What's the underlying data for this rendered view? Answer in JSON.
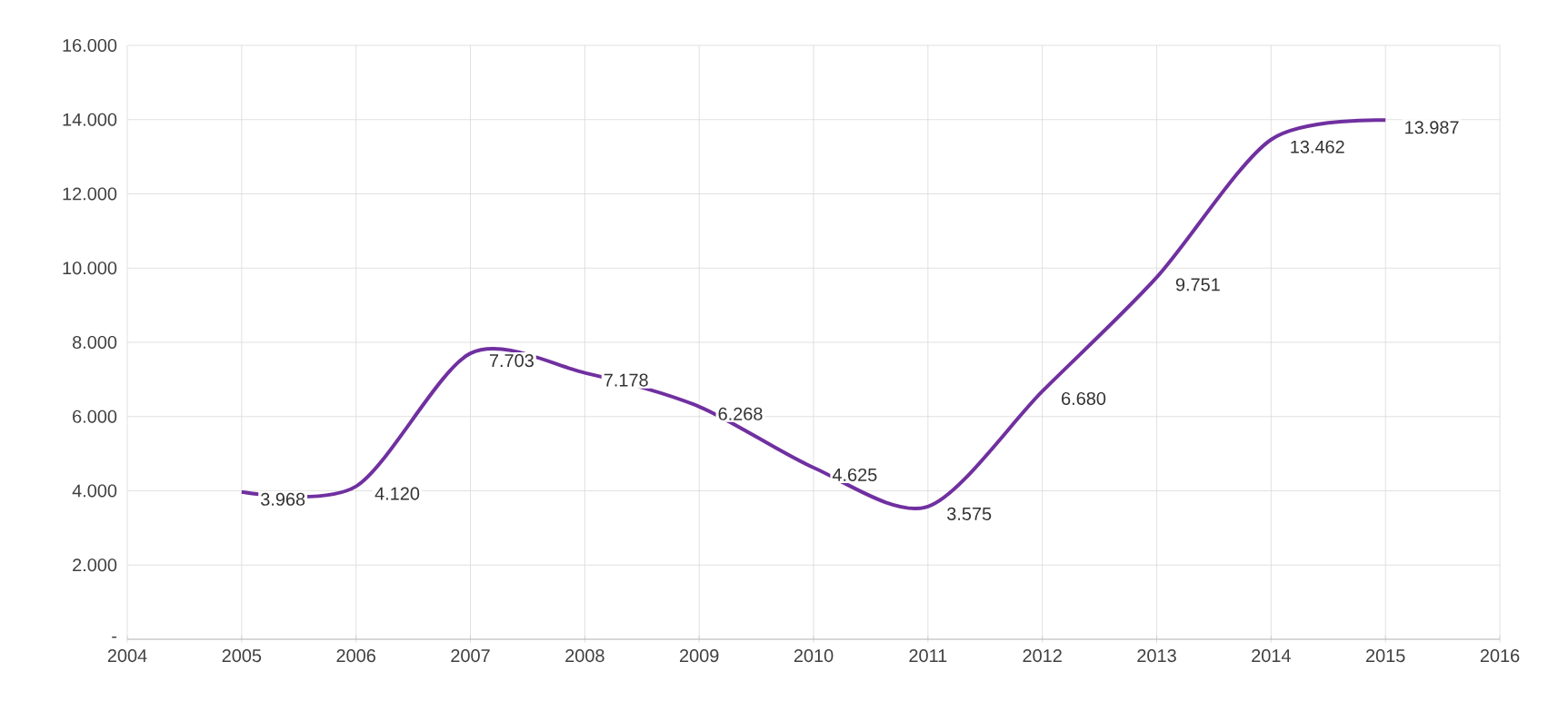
{
  "chart_data": {
    "type": "line",
    "x": [
      2005,
      2006,
      2007,
      2008,
      2009,
      2010,
      2011,
      2012,
      2013,
      2014,
      2015
    ],
    "values": [
      3968,
      4120,
      7703,
      7178,
      6268,
      4625,
      3575,
      6680,
      9751,
      13462,
      13987
    ],
    "value_labels": [
      "3.968",
      "4.120",
      "7.703",
      "7.178",
      "6.268",
      "4.625",
      "3.575",
      "6.680",
      "9.751",
      "13.462",
      "13.987"
    ],
    "color": "#7030a0",
    "xlim": [
      2004,
      2016
    ],
    "xticks": [
      2004,
      2005,
      2006,
      2007,
      2008,
      2009,
      2010,
      2011,
      2012,
      2013,
      2014,
      2015,
      2016
    ],
    "ylim": [
      0,
      16000
    ],
    "yticks": [
      {
        "value": 0,
        "label": "-"
      },
      {
        "value": 2000,
        "label": "2.000"
      },
      {
        "value": 4000,
        "label": "4.000"
      },
      {
        "value": 6000,
        "label": "6.000"
      },
      {
        "value": 8000,
        "label": "8.000"
      },
      {
        "value": 10000,
        "label": "10.000"
      },
      {
        "value": 12000,
        "label": "12.000"
      },
      {
        "value": 14000,
        "label": "14.000"
      },
      {
        "value": 16000,
        "label": "16.000"
      }
    ],
    "grid": true,
    "marker": "none",
    "line_style": "solid"
  }
}
